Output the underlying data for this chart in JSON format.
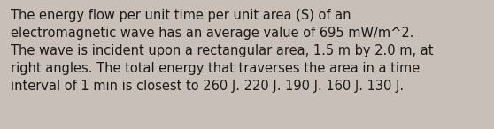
{
  "text": "The energy flow per unit time per unit area (S) of an\nelectromagnetic wave has an average value of 695 mW/m^2.\nThe wave is incident upon a rectangular area, 1.5 m by 2.0 m, at\nright angles. The total energy that traverses the area in a time\ninterval of 1 min is closest to 260 J. 220 J. 190 J. 160 J. 130 J.",
  "background_color": "#c8c0b8",
  "text_color": "#1a1a1a",
  "font_size": 10.5,
  "fig_width": 5.58,
  "fig_height": 1.46,
  "dpi": 100
}
